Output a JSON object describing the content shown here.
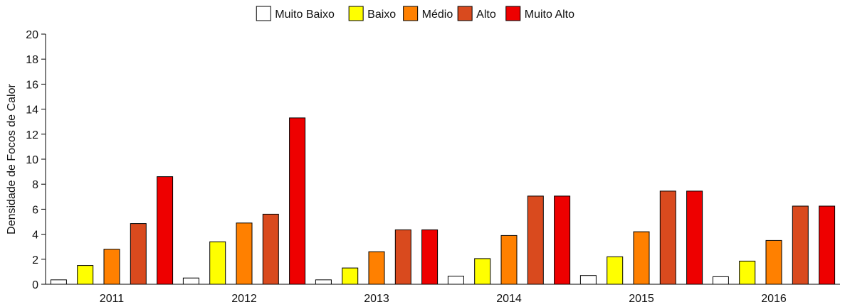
{
  "chart_data": {
    "type": "bar",
    "title": "",
    "xlabel": "",
    "ylabel": "Densidade de Focos de Calor",
    "ylim": [
      0,
      20
    ],
    "yticks": [
      0,
      2,
      4,
      6,
      8,
      10,
      12,
      14,
      16,
      18,
      20
    ],
    "grid": false,
    "legend_position": "top-center",
    "categories": [
      "2011",
      "2012",
      "2013",
      "2014",
      "2015",
      "2016"
    ],
    "series": [
      {
        "name": "Muito Baixo",
        "color": "#ffffff",
        "values": [
          0.35,
          0.5,
          0.35,
          0.65,
          0.7,
          0.6
        ]
      },
      {
        "name": "Baixo",
        "color": "#ffff00",
        "values": [
          1.5,
          3.4,
          1.3,
          2.05,
          2.2,
          1.85
        ]
      },
      {
        "name": "Médio",
        "color": "#ff8000",
        "values": [
          2.8,
          4.9,
          2.6,
          3.9,
          4.2,
          3.5
        ]
      },
      {
        "name": "Alto",
        "color": "#d94a1e",
        "values": [
          4.85,
          5.6,
          4.35,
          7.05,
          7.45,
          6.25
        ]
      },
      {
        "name": "Muito Alto",
        "color": "#ee0000",
        "values": [
          8.6,
          13.3,
          4.35,
          7.05,
          7.45,
          6.25
        ]
      }
    ]
  }
}
